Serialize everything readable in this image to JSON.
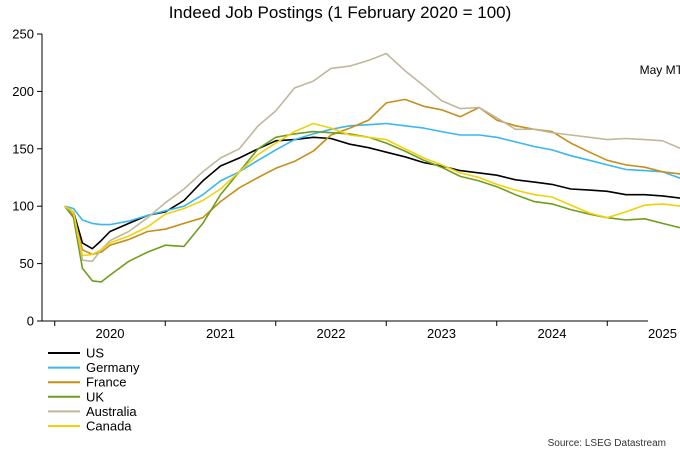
{
  "chart_data": {
    "type": "line",
    "title": "Indeed Job Postings (1 February 2020 = 100)",
    "xlabel": "",
    "ylabel": "",
    "ylim": [
      0,
      250
    ],
    "yticks": [
      0,
      50,
      100,
      150,
      200,
      250
    ],
    "xlim": [
      2019.92,
      2025.35
    ],
    "x_tick_labels": [
      {
        "label": "2020",
        "x": 2020.0
      },
      {
        "label": "2021",
        "x": 2021.0
      },
      {
        "label": "2022",
        "x": 2022.0
      },
      {
        "label": "2023",
        "x": 2023.0
      },
      {
        "label": "2024",
        "x": 2024.0
      },
      {
        "label": "2025",
        "x": 2025.0
      }
    ],
    "x_tick_marks": [
      2019.5,
      2020.5,
      2021.5,
      2022.5,
      2023.5,
      2024.5,
      2025.5
    ],
    "grid": false,
    "legend_position": "bottom-left",
    "annotation": {
      "text": "May MTD",
      "x": 2025.3
    },
    "source": "Source: LSEG Datastream",
    "series": [
      {
        "name": "US",
        "color": "#000000",
        "points": [
          [
            2019.59,
            100
          ],
          [
            2019.67,
            95
          ],
          [
            2019.75,
            68
          ],
          [
            2019.84,
            63
          ],
          [
            2019.92,
            70
          ],
          [
            2020.0,
            78
          ],
          [
            2020.17,
            85
          ],
          [
            2020.34,
            92
          ],
          [
            2020.5,
            95
          ],
          [
            2020.67,
            105
          ],
          [
            2020.84,
            122
          ],
          [
            2021.0,
            135
          ],
          [
            2021.17,
            142
          ],
          [
            2021.34,
            150
          ],
          [
            2021.5,
            157
          ],
          [
            2021.67,
            158
          ],
          [
            2021.84,
            160
          ],
          [
            2022.0,
            159
          ],
          [
            2022.17,
            154
          ],
          [
            2022.34,
            151
          ],
          [
            2022.5,
            147
          ],
          [
            2022.67,
            143
          ],
          [
            2022.84,
            138
          ],
          [
            2023.0,
            135
          ],
          [
            2023.17,
            131
          ],
          [
            2023.34,
            129
          ],
          [
            2023.5,
            127
          ],
          [
            2023.67,
            123
          ],
          [
            2023.84,
            121
          ],
          [
            2024.0,
            119
          ],
          [
            2024.17,
            115
          ],
          [
            2024.34,
            114
          ],
          [
            2024.5,
            113
          ],
          [
            2024.67,
            110
          ],
          [
            2024.84,
            110
          ],
          [
            2025.0,
            109
          ],
          [
            2025.17,
            107
          ],
          [
            2025.3,
            106
          ]
        ]
      },
      {
        "name": "Germany",
        "color": "#3ab7ee",
        "points": [
          [
            2019.59,
            100
          ],
          [
            2019.67,
            98
          ],
          [
            2019.75,
            88
          ],
          [
            2019.84,
            85
          ],
          [
            2019.92,
            84
          ],
          [
            2020.0,
            84
          ],
          [
            2020.17,
            87
          ],
          [
            2020.34,
            92
          ],
          [
            2020.5,
            96
          ],
          [
            2020.67,
            100
          ],
          [
            2020.84,
            110
          ],
          [
            2021.0,
            122
          ],
          [
            2021.17,
            130
          ],
          [
            2021.34,
            140
          ],
          [
            2021.5,
            149
          ],
          [
            2021.67,
            158
          ],
          [
            2021.84,
            163
          ],
          [
            2022.0,
            167
          ],
          [
            2022.17,
            170
          ],
          [
            2022.34,
            171
          ],
          [
            2022.5,
            172
          ],
          [
            2022.67,
            170
          ],
          [
            2022.84,
            168
          ],
          [
            2023.0,
            165
          ],
          [
            2023.17,
            162
          ],
          [
            2023.34,
            162
          ],
          [
            2023.5,
            160
          ],
          [
            2023.67,
            156
          ],
          [
            2023.84,
            152
          ],
          [
            2024.0,
            149
          ],
          [
            2024.17,
            144
          ],
          [
            2024.34,
            140
          ],
          [
            2024.5,
            136
          ],
          [
            2024.67,
            132
          ],
          [
            2024.84,
            131
          ],
          [
            2025.0,
            130
          ],
          [
            2025.17,
            124
          ],
          [
            2025.3,
            120
          ]
        ]
      },
      {
        "name": "France",
        "color": "#c78e18",
        "points": [
          [
            2019.59,
            100
          ],
          [
            2019.67,
            92
          ],
          [
            2019.75,
            62
          ],
          [
            2019.84,
            58
          ],
          [
            2019.92,
            60
          ],
          [
            2020.0,
            66
          ],
          [
            2020.17,
            71
          ],
          [
            2020.34,
            78
          ],
          [
            2020.5,
            80
          ],
          [
            2020.67,
            85
          ],
          [
            2020.84,
            90
          ],
          [
            2021.0,
            104
          ],
          [
            2021.17,
            116
          ],
          [
            2021.34,
            125
          ],
          [
            2021.5,
            133
          ],
          [
            2021.67,
            139
          ],
          [
            2021.84,
            148
          ],
          [
            2022.0,
            162
          ],
          [
            2022.17,
            168
          ],
          [
            2022.34,
            175
          ],
          [
            2022.5,
            190
          ],
          [
            2022.67,
            193
          ],
          [
            2022.84,
            187
          ],
          [
            2023.0,
            184
          ],
          [
            2023.17,
            178
          ],
          [
            2023.34,
            186
          ],
          [
            2023.5,
            175
          ],
          [
            2023.67,
            170
          ],
          [
            2023.84,
            167
          ],
          [
            2024.0,
            165
          ],
          [
            2024.17,
            155
          ],
          [
            2024.34,
            147
          ],
          [
            2024.5,
            140
          ],
          [
            2024.67,
            136
          ],
          [
            2024.84,
            134
          ],
          [
            2025.0,
            130
          ],
          [
            2025.17,
            128
          ],
          [
            2025.3,
            128
          ]
        ]
      },
      {
        "name": "UK",
        "color": "#6f9e1c",
        "points": [
          [
            2019.59,
            100
          ],
          [
            2019.67,
            90
          ],
          [
            2019.75,
            46
          ],
          [
            2019.84,
            35
          ],
          [
            2019.92,
            34
          ],
          [
            2020.0,
            40
          ],
          [
            2020.17,
            52
          ],
          [
            2020.34,
            60
          ],
          [
            2020.5,
            66
          ],
          [
            2020.67,
            65
          ],
          [
            2020.84,
            85
          ],
          [
            2021.0,
            110
          ],
          [
            2021.17,
            130
          ],
          [
            2021.34,
            150
          ],
          [
            2021.5,
            160
          ],
          [
            2021.67,
            163
          ],
          [
            2021.84,
            165
          ],
          [
            2022.0,
            164
          ],
          [
            2022.17,
            163
          ],
          [
            2022.34,
            160
          ],
          [
            2022.5,
            155
          ],
          [
            2022.67,
            148
          ],
          [
            2022.84,
            140
          ],
          [
            2023.0,
            134
          ],
          [
            2023.17,
            126
          ],
          [
            2023.34,
            122
          ],
          [
            2023.5,
            117
          ],
          [
            2023.67,
            110
          ],
          [
            2023.84,
            104
          ],
          [
            2024.0,
            102
          ],
          [
            2024.17,
            97
          ],
          [
            2024.34,
            93
          ],
          [
            2024.5,
            90
          ],
          [
            2024.67,
            88
          ],
          [
            2024.84,
            89
          ],
          [
            2025.0,
            85
          ],
          [
            2025.17,
            81
          ],
          [
            2025.3,
            77
          ]
        ]
      },
      {
        "name": "Australia",
        "color": "#bfb89a",
        "points": [
          [
            2019.59,
            100
          ],
          [
            2019.67,
            95
          ],
          [
            2019.75,
            53
          ],
          [
            2019.84,
            52
          ],
          [
            2019.92,
            62
          ],
          [
            2020.0,
            70
          ],
          [
            2020.17,
            78
          ],
          [
            2020.34,
            90
          ],
          [
            2020.5,
            103
          ],
          [
            2020.67,
            115
          ],
          [
            2020.84,
            130
          ],
          [
            2021.0,
            142
          ],
          [
            2021.17,
            150
          ],
          [
            2021.34,
            170
          ],
          [
            2021.5,
            183
          ],
          [
            2021.67,
            203
          ],
          [
            2021.84,
            209
          ],
          [
            2022.0,
            220
          ],
          [
            2022.17,
            222
          ],
          [
            2022.34,
            227
          ],
          [
            2022.5,
            233
          ],
          [
            2022.67,
            218
          ],
          [
            2022.84,
            205
          ],
          [
            2023.0,
            192
          ],
          [
            2023.17,
            185
          ],
          [
            2023.34,
            186
          ],
          [
            2023.5,
            177
          ],
          [
            2023.67,
            167
          ],
          [
            2023.84,
            167
          ],
          [
            2024.0,
            164
          ],
          [
            2024.17,
            162
          ],
          [
            2024.34,
            160
          ],
          [
            2024.5,
            158
          ],
          [
            2024.67,
            159
          ],
          [
            2024.84,
            158
          ],
          [
            2025.0,
            157
          ],
          [
            2025.17,
            150
          ],
          [
            2025.3,
            145
          ]
        ]
      },
      {
        "name": "Canada",
        "color": "#f2d10c",
        "points": [
          [
            2019.59,
            100
          ],
          [
            2019.67,
            95
          ],
          [
            2019.75,
            57
          ],
          [
            2019.84,
            58
          ],
          [
            2019.92,
            62
          ],
          [
            2020.0,
            68
          ],
          [
            2020.17,
            74
          ],
          [
            2020.34,
            82
          ],
          [
            2020.5,
            93
          ],
          [
            2020.67,
            98
          ],
          [
            2020.84,
            105
          ],
          [
            2021.0,
            115
          ],
          [
            2021.17,
            130
          ],
          [
            2021.34,
            145
          ],
          [
            2021.5,
            155
          ],
          [
            2021.67,
            165
          ],
          [
            2021.84,
            172
          ],
          [
            2022.0,
            168
          ],
          [
            2022.17,
            162
          ],
          [
            2022.34,
            160
          ],
          [
            2022.5,
            158
          ],
          [
            2022.67,
            150
          ],
          [
            2022.84,
            142
          ],
          [
            2023.0,
            136
          ],
          [
            2023.17,
            129
          ],
          [
            2023.34,
            125
          ],
          [
            2023.5,
            119
          ],
          [
            2023.67,
            114
          ],
          [
            2023.84,
            110
          ],
          [
            2024.0,
            108
          ],
          [
            2024.17,
            101
          ],
          [
            2024.34,
            94
          ],
          [
            2024.5,
            90
          ],
          [
            2024.67,
            95
          ],
          [
            2024.84,
            101
          ],
          [
            2025.0,
            102
          ],
          [
            2025.17,
            100
          ],
          [
            2025.3,
            100
          ]
        ]
      }
    ]
  }
}
